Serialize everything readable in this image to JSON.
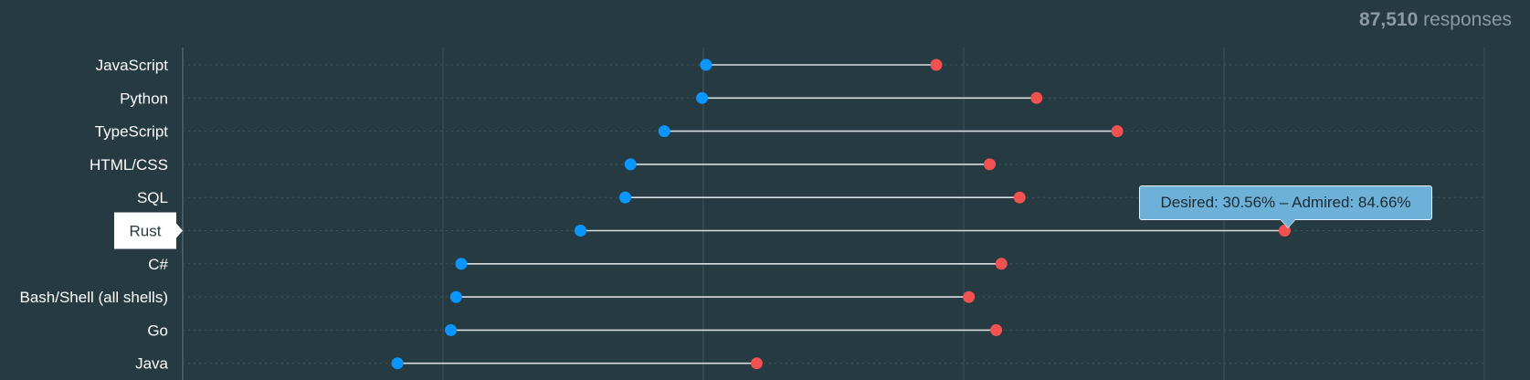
{
  "responses": {
    "count": "87,510",
    "label": "responses"
  },
  "tooltip": {
    "text": "Desired: 30.56% – Admired: 84.66%"
  },
  "colors": {
    "background": "#253a41",
    "desired": "#0a95ff",
    "admired": "#f05252",
    "connector": "#d7dde0",
    "label": "#ffffff",
    "highlight_label_bg": "#ffffff",
    "highlight_label_text": "#253a41",
    "tooltip_bg": "#6db0d8"
  },
  "chart_data": {
    "type": "dumbbell",
    "x_axis": {
      "min": 0,
      "max": 100,
      "gridlines": [
        0,
        20,
        40,
        60,
        80,
        100
      ]
    },
    "highlighted": "Rust",
    "series": [
      {
        "name": "Desired",
        "color": "#0a95ff"
      },
      {
        "name": "Admired",
        "color": "#f05252"
      }
    ],
    "rows": [
      {
        "label": "JavaScript",
        "desired": 40.2,
        "admired": 57.9
      },
      {
        "label": "Python",
        "desired": 39.9,
        "admired": 65.6
      },
      {
        "label": "TypeScript",
        "desired": 37.0,
        "admired": 71.8
      },
      {
        "label": "HTML/CSS",
        "desired": 34.4,
        "admired": 62.0
      },
      {
        "label": "SQL",
        "desired": 34.0,
        "admired": 64.3
      },
      {
        "label": "Rust",
        "desired": 30.56,
        "admired": 84.66
      },
      {
        "label": "C#",
        "desired": 21.4,
        "admired": 62.9
      },
      {
        "label": "Bash/Shell (all shells)",
        "desired": 21.0,
        "admired": 60.4
      },
      {
        "label": "Go",
        "desired": 20.6,
        "admired": 62.5
      },
      {
        "label": "Java",
        "desired": 16.5,
        "admired": 44.1
      }
    ]
  }
}
